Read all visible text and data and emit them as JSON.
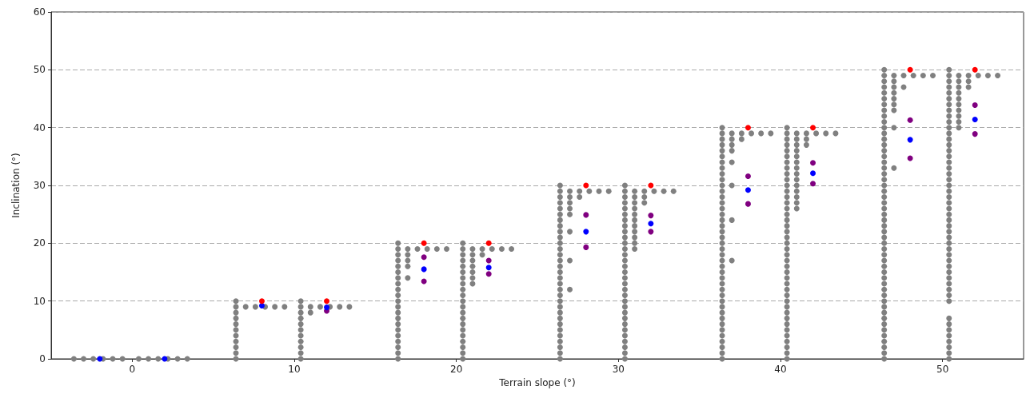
{
  "chart_data": {
    "type": "scatter",
    "xlabel": "Terrain slope (°)",
    "ylabel": "Inclination (°)",
    "xlim": [
      -5,
      55
    ],
    "xticks": [
      0,
      10,
      20,
      30,
      40,
      50
    ],
    "ylim": [
      0,
      60
    ],
    "yticks": [
      0,
      10,
      20,
      30,
      40,
      50,
      60
    ],
    "grid": "y",
    "marker": "circle",
    "series": [
      {
        "color": "#808080",
        "x": [
          -3.6,
          -3.0,
          -2.4,
          -1.8,
          -1.2,
          -0.6
        ],
        "values": [
          0,
          0,
          0,
          0,
          0,
          0
        ]
      },
      {
        "color": "#808080",
        "x": [
          0.4,
          1.0,
          1.6,
          2.2,
          2.8,
          3.4
        ],
        "values": [
          0,
          0,
          0,
          0,
          0,
          0
        ]
      },
      {
        "color": "#808080",
        "x": [
          6.4,
          6.4,
          7.0,
          7.6,
          8.2,
          8.8,
          9.4,
          6.4,
          6.4,
          6.4,
          6.4,
          6.4,
          6.4,
          6.4,
          6.4,
          6.4
        ],
        "values": [
          9,
          8,
          9,
          9,
          9,
          9,
          9,
          10,
          7,
          6,
          5,
          4,
          3,
          2,
          1,
          0
        ]
      },
      {
        "color": "#808080",
        "x": [
          10.4,
          10.4,
          10.4,
          11.0,
          11.6,
          12.2,
          12.8,
          13.4,
          10.4,
          10.4,
          10.4,
          10.4,
          10.4,
          10.4,
          10.4,
          10.4,
          11.0
        ],
        "values": [
          9,
          8,
          7,
          9,
          9,
          9,
          9,
          9,
          10,
          6,
          5,
          4,
          3,
          2,
          1,
          0,
          8
        ]
      },
      {
        "color": "#808080",
        "x": [
          16.4,
          16.4,
          16.4,
          16.4,
          16.4,
          16.4,
          17.0,
          17.0,
          17.6,
          18.2,
          18.8,
          19.4,
          16.4,
          16.4,
          16.4,
          16.4,
          16.4,
          16.4,
          16.4,
          16.4,
          16.4,
          16.4,
          16.4,
          16.4,
          16.4,
          16.4,
          16.4,
          17.0,
          17.0,
          17.0
        ],
        "values": [
          19,
          18,
          17,
          16,
          14,
          11,
          19,
          18,
          19,
          19,
          19,
          19,
          20,
          15,
          13,
          12,
          10,
          9,
          8,
          7,
          6,
          5,
          4,
          3,
          2,
          1,
          0,
          17,
          16,
          14
        ]
      },
      {
        "color": "#808080",
        "x": [
          20.4,
          20.4,
          20.4,
          20.4,
          20.4,
          20.4,
          20.4,
          20.4,
          20.4,
          20.4,
          21.0,
          21.0,
          21.0,
          21.0,
          21.0,
          21.6,
          22.2,
          22.8,
          23.4,
          20.4,
          20.4,
          20.4,
          20.4,
          20.4,
          20.4,
          20.4,
          20.4,
          20.4,
          20.4,
          20.4,
          21.0,
          21.0,
          21.6
        ],
        "values": [
          19,
          18,
          17,
          16,
          15,
          14,
          13,
          12,
          11,
          10,
          19,
          18,
          17,
          16,
          15,
          19,
          19,
          19,
          19,
          20,
          9,
          8,
          7,
          6,
          5,
          4,
          3,
          2,
          1,
          0,
          14,
          13,
          18
        ]
      },
      {
        "color": "#808080",
        "x": [
          26.4,
          26.4,
          26.4,
          26.4,
          26.4,
          26.4,
          26.4,
          26.4,
          26.4,
          26.4,
          26.4,
          27.0,
          27.0,
          27.0,
          27.0,
          27.6,
          28.2,
          28.8,
          29.4,
          26.4,
          26.4,
          26.4,
          26.4,
          26.4,
          26.4,
          26.4,
          26.4,
          26.4,
          26.4,
          26.4,
          26.4,
          26.4,
          26.4,
          26.4,
          26.4,
          26.4,
          26.4,
          26.4,
          26.4,
          27.0,
          27.0,
          27.0,
          27.0,
          27.6
        ],
        "values": [
          29,
          28,
          27,
          26,
          25,
          24,
          23,
          22,
          17,
          12,
          6,
          29,
          28,
          25,
          22,
          29,
          29,
          29,
          29,
          30,
          21,
          20,
          19,
          18,
          16,
          15,
          14,
          13,
          11,
          10,
          9,
          8,
          7,
          5,
          4,
          3,
          2,
          1,
          0,
          27,
          26,
          17,
          12,
          28
        ]
      },
      {
        "color": "#808080",
        "x": [
          30.4,
          30.4,
          30.4,
          30.4,
          30.4,
          30.4,
          30.4,
          30.4,
          30.4,
          30.4,
          30.4,
          30.4,
          30.4,
          30.4,
          31.0,
          31.0,
          31.0,
          31.0,
          31.0,
          31.6,
          32.2,
          32.8,
          33.4,
          30.4,
          30.4,
          30.4,
          30.4,
          30.4,
          30.4,
          30.4,
          30.4,
          30.4,
          30.4,
          30.4,
          30.4,
          30.4,
          30.4,
          30.4,
          30.4,
          30.4,
          31.0,
          31.0,
          31.0,
          31.0,
          31.0,
          31.0,
          31.6,
          31.6
        ],
        "values": [
          29,
          28,
          27,
          26,
          25,
          24,
          23,
          22,
          21,
          20,
          19,
          18,
          17,
          16,
          29,
          28,
          27,
          26,
          25,
          29,
          29,
          29,
          29,
          30,
          15,
          14,
          13,
          12,
          11,
          10,
          9,
          8,
          7,
          6,
          5,
          4,
          3,
          2,
          1,
          0,
          24,
          23,
          22,
          21,
          20,
          19,
          28,
          27
        ]
      },
      {
        "color": "#808080",
        "x": [
          36.4,
          36.4,
          36.4,
          36.4,
          36.4,
          36.4,
          36.4,
          36.4,
          36.4,
          36.4,
          36.4,
          37.0,
          37.0,
          37.0,
          37.0,
          37.0,
          37.6,
          38.2,
          38.8,
          39.4,
          36.4,
          36.4,
          36.4,
          36.4,
          36.4,
          36.4,
          36.4,
          36.4,
          36.4,
          36.4,
          36.4,
          36.4,
          36.4,
          36.4,
          36.4,
          36.4,
          36.4,
          36.4,
          36.4,
          36.4,
          36.4,
          36.4,
          36.4,
          36.4,
          36.4,
          36.4,
          36.4,
          36.4,
          36.4,
          36.4,
          37.0,
          37.0,
          37.0,
          37.6
        ],
        "values": [
          39,
          38,
          37,
          36,
          35,
          34,
          33,
          30,
          27,
          24,
          17,
          39,
          38,
          37,
          34,
          30,
          39,
          39,
          39,
          39,
          40,
          32,
          31,
          29,
          28,
          26,
          25,
          23,
          22,
          21,
          20,
          19,
          18,
          16,
          15,
          14,
          13,
          12,
          11,
          10,
          9,
          8,
          7,
          6,
          5,
          4,
          3,
          2,
          1,
          0,
          36,
          24,
          17,
          38
        ]
      },
      {
        "color": "#808080",
        "x": [
          40.4,
          41.0,
          41.0,
          41.0,
          41.0,
          41.0,
          41.6,
          42.2,
          42.8,
          43.4,
          40.4,
          40.4,
          40.4,
          40.4,
          40.4,
          40.4,
          40.4,
          40.4,
          40.4,
          40.4,
          40.4,
          40.4,
          40.4,
          40.4,
          40.4,
          40.4,
          40.4,
          40.4,
          40.4,
          40.4,
          40.4,
          40.4,
          40.4,
          40.4,
          40.4,
          40.4,
          40.4,
          40.4,
          40.4,
          40.4,
          40.4,
          40.4,
          40.4,
          40.4,
          40.4,
          40.4,
          40.4,
          40.4,
          40.4,
          40.4,
          41.0,
          41.0,
          41.0,
          41.0,
          41.0,
          41.0,
          41.0,
          41.0,
          41.0,
          41.6,
          41.6
        ],
        "values": [
          39,
          39,
          38,
          37,
          36,
          35,
          39,
          39,
          39,
          39,
          40,
          38,
          37,
          36,
          35,
          34,
          33,
          32,
          31,
          30,
          29,
          28,
          27,
          26,
          25,
          24,
          23,
          22,
          21,
          20,
          19,
          18,
          17,
          16,
          15,
          14,
          13,
          12,
          11,
          10,
          9,
          8,
          7,
          6,
          5,
          4,
          3,
          2,
          1,
          0,
          34,
          33,
          32,
          31,
          30,
          29,
          28,
          27,
          26,
          38,
          37
        ]
      },
      {
        "color": "#808080",
        "x": [
          46.4,
          46.4,
          46.4,
          46.4,
          46.4,
          46.4,
          46.4,
          46.4,
          46.4,
          46.4,
          46.4,
          46.4,
          46.4,
          46.4,
          47.0,
          47.0,
          47.0,
          47.0,
          47.6,
          48.2,
          48.8,
          49.4,
          46.4,
          46.4,
          46.4,
          46.4,
          46.4,
          46.4,
          46.4,
          46.4,
          46.4,
          46.4,
          46.4,
          46.4,
          46.4,
          46.4,
          46.4,
          46.4,
          46.4,
          46.4,
          46.4,
          46.4,
          46.4,
          46.4,
          46.4,
          46.4,
          46.4,
          46.4,
          46.4,
          46.4,
          46.4,
          46.4,
          46.4,
          46.4,
          46.4,
          46.4,
          46.4,
          46.4,
          46.4,
          47.0,
          47.0,
          47.0,
          47.0,
          47.0,
          47.6
        ],
        "values": [
          49,
          48,
          47,
          46,
          45,
          44,
          43,
          42,
          41,
          40,
          36,
          34,
          33,
          24,
          49,
          48,
          47,
          40,
          49,
          49,
          49,
          49,
          50,
          39,
          38,
          37,
          35,
          32,
          31,
          30,
          29,
          28,
          27,
          26,
          25,
          23,
          22,
          21,
          20,
          19,
          18,
          17,
          16,
          15,
          14,
          13,
          12,
          11,
          10,
          9,
          8,
          7,
          6,
          5,
          4,
          3,
          2,
          1,
          0,
          46,
          45,
          44,
          43,
          33,
          47
        ]
      },
      {
        "color": "#808080",
        "x": [
          50.4,
          50.4,
          50.4,
          50.4,
          50.4,
          50.4,
          50.4,
          50.4,
          50.4,
          50.4,
          50.4,
          50.4,
          50.4,
          50.4,
          51.0,
          51.0,
          51.0,
          51.6,
          52.2,
          52.8,
          53.4,
          50.4,
          50.4,
          50.4,
          50.4,
          50.4,
          50.4,
          50.4,
          50.4,
          50.4,
          50.4,
          50.4,
          50.4,
          50.4,
          50.4,
          50.4,
          50.4,
          50.4,
          50.4,
          50.4,
          50.4,
          50.4,
          50.4,
          50.4,
          50.4,
          50.4,
          50.4,
          50.4,
          50.4,
          50.4,
          50.4,
          50.4,
          50.4,
          50.4,
          50.4,
          50.4,
          51.0,
          51.0,
          51.0,
          51.0,
          51.0,
          51.0,
          51.0,
          51.6,
          51.6
        ],
        "values": [
          49,
          48,
          47,
          46,
          45,
          44,
          43,
          42,
          41,
          40,
          39,
          38,
          37,
          36,
          49,
          48,
          47,
          49,
          49,
          49,
          49,
          50,
          35,
          34,
          33,
          32,
          31,
          30,
          29,
          28,
          27,
          26,
          25,
          24,
          23,
          22,
          21,
          20,
          19,
          18,
          17,
          16,
          15,
          14,
          13,
          12,
          11,
          10,
          7,
          6,
          5,
          4,
          3,
          2,
          1,
          0,
          46,
          45,
          44,
          43,
          42,
          41,
          40,
          48,
          47
        ]
      },
      {
        "color": "#800080",
        "x": [
          12,
          18,
          18,
          22,
          22,
          28,
          28,
          32,
          32,
          38,
          38,
          42,
          42,
          48,
          48,
          52,
          52
        ],
        "values": [
          8.3,
          17.6,
          13.4,
          17.0,
          14.7,
          24.9,
          19.3,
          24.8,
          22.0,
          31.6,
          26.8,
          33.9,
          30.3,
          41.3,
          34.7,
          43.9,
          38.9
        ]
      },
      {
        "color": "#0000ff",
        "x": [
          -2,
          2,
          8,
          12,
          18,
          22,
          28,
          32,
          38,
          42,
          48,
          52
        ],
        "values": [
          0,
          0,
          9.2,
          8.9,
          15.5,
          15.8,
          22.0,
          23.4,
          29.2,
          32.1,
          37.9,
          41.4
        ]
      },
      {
        "color": "#ff0000",
        "x": [
          8,
          12,
          18,
          22,
          28,
          32,
          38,
          42,
          48,
          52
        ],
        "values": [
          10,
          10,
          20,
          20,
          30,
          30,
          40,
          40,
          50,
          50
        ]
      }
    ]
  }
}
